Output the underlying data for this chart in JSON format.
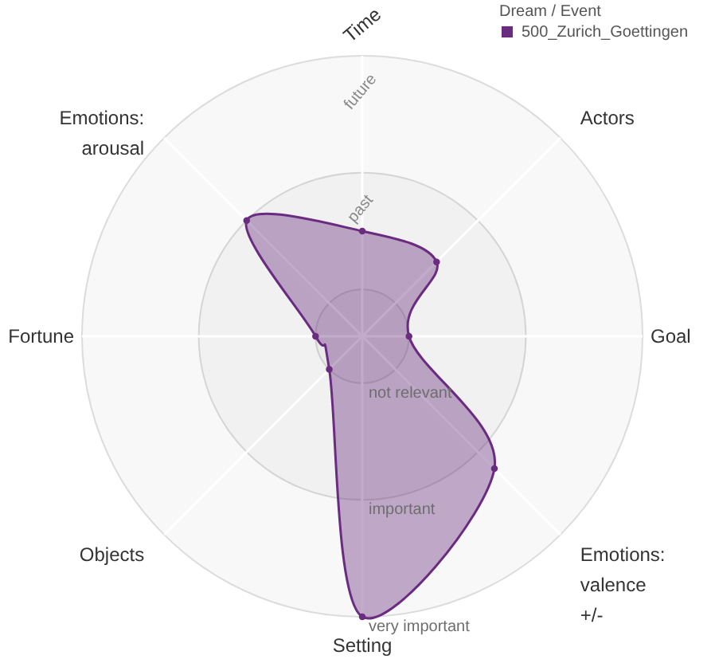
{
  "chart_data": {
    "type": "radar",
    "legend_title": "Dream / Event",
    "categories": [
      "Time",
      "Actors",
      "Goal",
      "Emotions: valence +/-",
      "Setting",
      "Objects",
      "Fortune",
      "Emotions: arousal"
    ],
    "series": [
      {
        "name": "500_Zurich_Goettingen",
        "color": "#6a2c80",
        "values": [
          1.5,
          1.5,
          1,
          2.2,
          3,
          1,
          1,
          2
        ]
      }
    ],
    "ylim": [
      0.6,
      3
    ],
    "yticks": [
      {
        "value": 1,
        "label": "not relevant"
      },
      {
        "value": 2,
        "label": "important"
      },
      {
        "value": 3,
        "label": "very important"
      }
    ],
    "annotations": [
      "past",
      "future"
    ],
    "grid": true,
    "legend": "top right",
    "marker": "circle",
    "line_style": "solid"
  }
}
